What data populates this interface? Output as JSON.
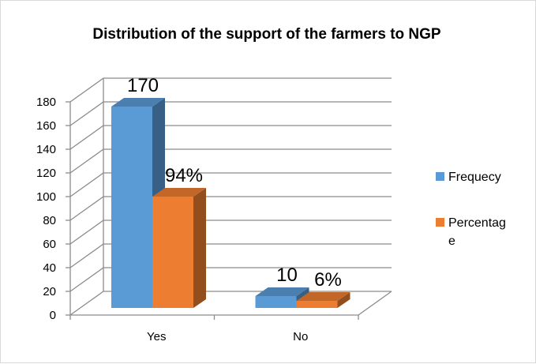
{
  "chart_data": {
    "type": "bar",
    "title": "Distribution of the support of the farmers to NGP",
    "categories": [
      "Yes",
      "No"
    ],
    "series": [
      {
        "name": "Frequecy",
        "values": [
          170,
          10
        ],
        "labels": [
          "170",
          "10"
        ],
        "color": "#5b9bd5"
      },
      {
        "name": "Percentage",
        "values": [
          94,
          6
        ],
        "labels": [
          "94%",
          "6%"
        ],
        "color": "#ed7d31"
      }
    ],
    "ylim": [
      0,
      180
    ],
    "yticks": [
      "0",
      "20",
      "40",
      "60",
      "80",
      "100",
      "120",
      "140",
      "160",
      "180"
    ],
    "legend": {
      "position": "right",
      "lines": [
        [
          "Frequecy"
        ],
        [
          "Percentag",
          "e"
        ]
      ]
    },
    "grid": true,
    "style": "3d-clustered-column"
  }
}
